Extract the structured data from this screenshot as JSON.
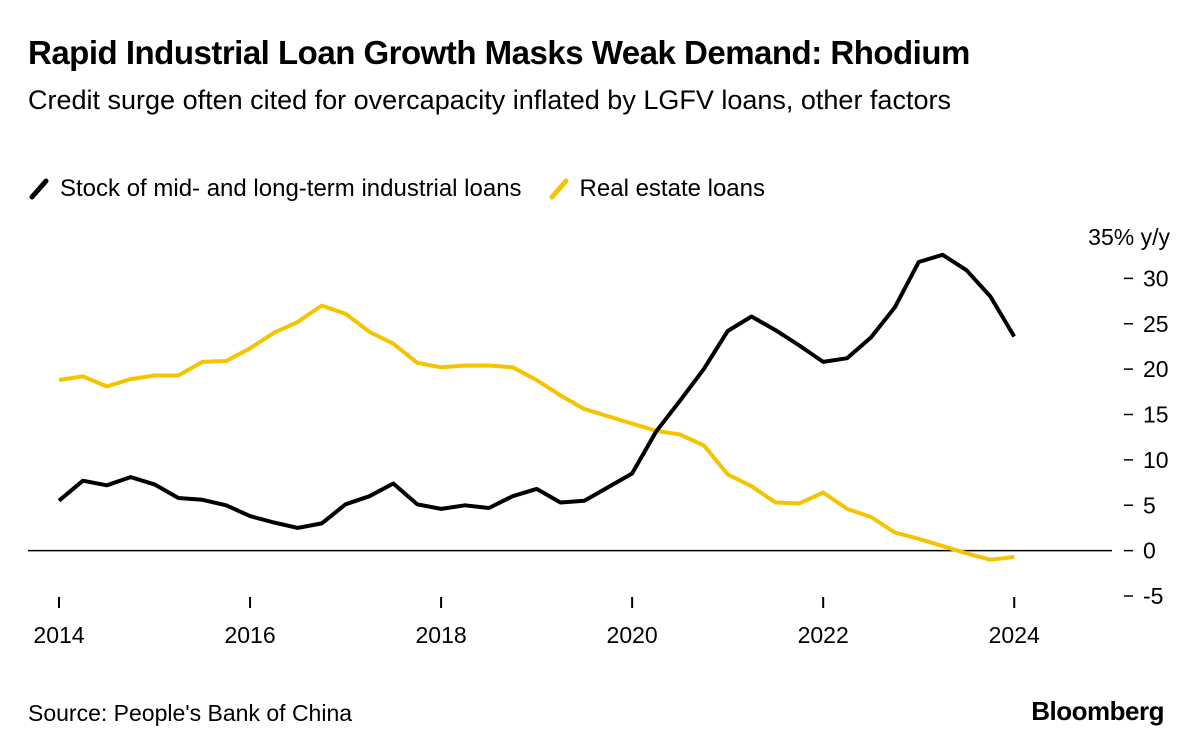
{
  "header": {
    "title": "Rapid Industrial Loan Growth Masks Weak Demand: Rhodium",
    "subtitle": "Credit surge often cited for overcapacity inflated by LGFV loans, other factors"
  },
  "legend": [
    {
      "label": "Stock of mid- and long-term industrial loans",
      "color": "#000000"
    },
    {
      "label": "Real estate loans",
      "color": "#f5c400"
    }
  ],
  "footer": {
    "source": "Source: People's Bank of China",
    "brand": "Bloomberg"
  },
  "chart_data": {
    "type": "line",
    "title": "Rapid Industrial Loan Growth Masks Weak Demand: Rhodium",
    "subtitle": "Credit surge often cited for overcapacity inflated by LGFV loans, other factors",
    "xlabel": "",
    "ylabel": "y/y",
    "y_unit_label": "35% y/y",
    "ylim": [
      -5,
      35
    ],
    "xlim": [
      2014,
      2024.5
    ],
    "y_ticks": [
      {
        "value": 30,
        "label": "30"
      },
      {
        "value": 25,
        "label": "25"
      },
      {
        "value": 20,
        "label": "20"
      },
      {
        "value": 15,
        "label": "15"
      },
      {
        "value": 10,
        "label": "10"
      },
      {
        "value": 5,
        "label": "5"
      },
      {
        "value": 0,
        "label": "0"
      },
      {
        "value": -5,
        "label": "-5"
      }
    ],
    "x_ticks": [
      {
        "value": 2014,
        "label": "2014"
      },
      {
        "value": 2016,
        "label": "2016"
      },
      {
        "value": 2018,
        "label": "2018"
      },
      {
        "value": 2020,
        "label": "2020"
      },
      {
        "value": 2022,
        "label": "2022"
      },
      {
        "value": 2024,
        "label": "2024"
      }
    ],
    "x": [
      2014.0,
      2014.25,
      2014.5,
      2014.75,
      2015.0,
      2015.25,
      2015.5,
      2015.75,
      2016.0,
      2016.25,
      2016.5,
      2016.75,
      2017.0,
      2017.25,
      2017.5,
      2017.75,
      2018.0,
      2018.25,
      2018.5,
      2018.75,
      2019.0,
      2019.25,
      2019.5,
      2019.75,
      2020.0,
      2020.25,
      2020.5,
      2020.75,
      2021.0,
      2021.25,
      2021.5,
      2021.75,
      2022.0,
      2022.25,
      2022.5,
      2022.75,
      2023.0,
      2023.25,
      2023.5,
      2023.75,
      2024.0,
      2024.25
    ],
    "series": [
      {
        "name": "Stock of mid- and long-term industrial loans",
        "color": "#000000",
        "values": [
          5.5,
          7.7,
          7.2,
          8.1,
          7.3,
          5.8,
          5.6,
          5.0,
          3.8,
          3.1,
          2.5,
          3.0,
          5.1,
          6.0,
          7.4,
          5.1,
          4.6,
          5.0,
          4.7,
          6.0,
          6.8,
          5.3,
          5.5,
          7.0,
          8.5,
          13.1,
          16.5,
          20.0,
          24.2,
          25.8,
          24.3,
          22.6,
          20.8,
          21.2,
          23.5,
          26.8,
          31.8,
          32.6,
          30.9,
          28.0,
          23.6,
          null
        ]
      },
      {
        "name": "Real estate loans",
        "color": "#f5c400",
        "values": [
          18.8,
          19.2,
          18.1,
          18.9,
          19.3,
          19.3,
          20.8,
          20.9,
          22.3,
          24.0,
          25.2,
          27.0,
          26.1,
          24.1,
          22.8,
          20.7,
          20.2,
          20.4,
          20.4,
          20.2,
          18.8,
          17.1,
          15.6,
          14.8,
          14.0,
          13.2,
          12.8,
          11.6,
          8.4,
          7.1,
          5.3,
          5.2,
          6.4,
          4.6,
          3.7,
          2.0,
          1.3,
          0.5,
          -0.3,
          -1.0,
          -0.7,
          null
        ]
      }
    ]
  }
}
